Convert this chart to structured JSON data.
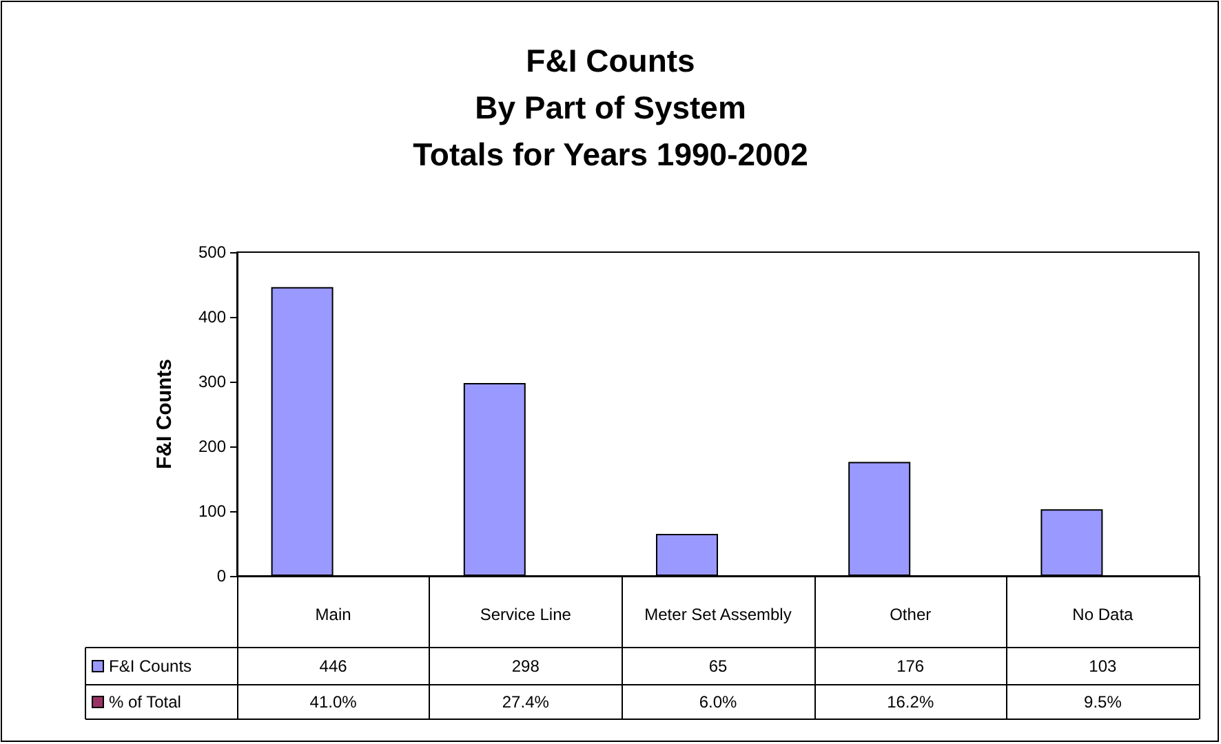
{
  "chart_data": {
    "type": "bar",
    "title": "F&I Counts\nBy Part of System\nTotals for Years 1990-2002",
    "ylabel": "F&I Counts",
    "categories": [
      "Main",
      "Service Line",
      "Meter Set Assembly",
      "Other",
      "No Data"
    ],
    "series": [
      {
        "name": "F&I Counts",
        "color": "#9999ff",
        "values": [
          446,
          298,
          65,
          176,
          103
        ],
        "value_labels": [
          "446",
          "298",
          "65",
          "176",
          "103"
        ]
      },
      {
        "name": "% of Total",
        "color": "#993366",
        "values": [
          null,
          null,
          null,
          null,
          null
        ],
        "value_labels": [
          "41.0%",
          "27.4%",
          "6.0%",
          "16.2%",
          "9.5%"
        ]
      }
    ],
    "ylim": [
      0,
      500
    ],
    "yticks": [
      0,
      100,
      200,
      300,
      400,
      500
    ],
    "grid": false
  }
}
